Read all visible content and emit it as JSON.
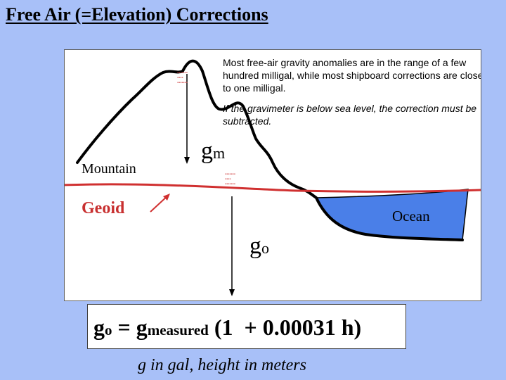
{
  "title": "Free Air (=Elevation) Corrections",
  "notes": {
    "note_1": "Most free-air gravity anomalies are in the range of a few hundred milligal, while most shipboard corrections are close to one milligal.",
    "note_2": "If the gravimeter is below sea level, the correction must be subtracted."
  },
  "labels": {
    "mountain": "Mountain",
    "geoid": "Geoid",
    "ocean": "Ocean",
    "g_m_main": "g",
    "g_m_sub": "m",
    "g_o_main": "g",
    "g_o_sub": "o"
  },
  "formula": {
    "lhs_main": "g",
    "lhs_sub": "o",
    "equals": " = ",
    "rhs_main": "g",
    "rhs_sub": "measured",
    "rhs_tail": " (1  + 0.00031 h)"
  },
  "caption": "g in gal, height in meters",
  "colors": {
    "geoid_line": "#d03030",
    "ocean_fill": "#4a7fe8",
    "terrain_line": "#000000"
  }
}
